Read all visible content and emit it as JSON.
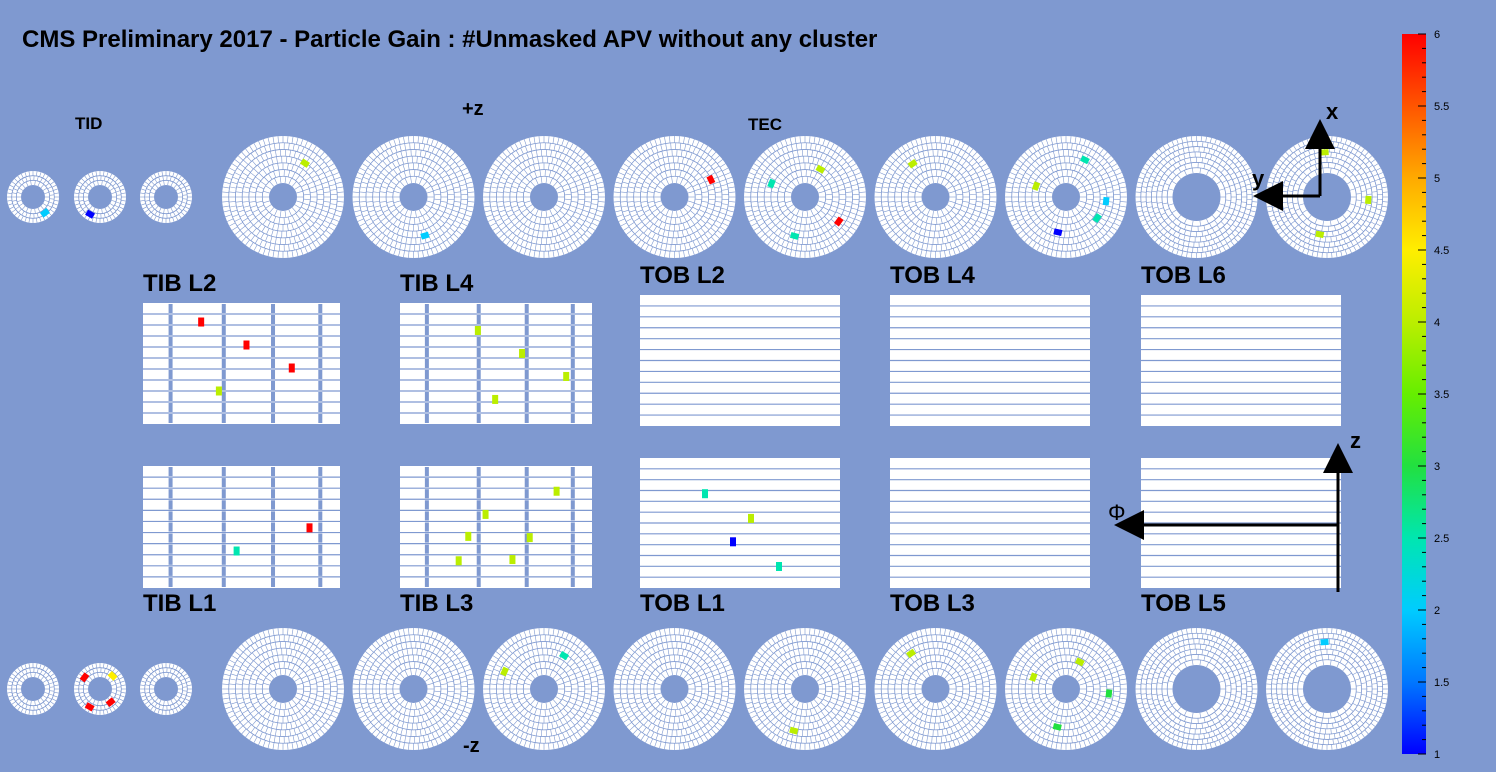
{
  "title": "CMS Preliminary 2017  -  Particle Gain : #Unmasked APV without any cluster",
  "colors": {
    "background": "#7f99d0",
    "module": "#ffffff",
    "axis": "#000000"
  },
  "labels": {
    "tid": "TID",
    "tec": "TEC",
    "plus_z": "+z",
    "minus_z": "-z"
  },
  "axes": {
    "x": "x",
    "y": "y",
    "z": "z",
    "phi": "Φ"
  },
  "chart_data": {
    "type": "heatmap",
    "title": "CMS Preliminary 2017  -  Particle Gain : #Unmasked APV without any cluster",
    "colorbar": {
      "min": 1,
      "max": 6,
      "ticks": [
        "1",
        "1.5",
        "2",
        "2.5",
        "3",
        "3.5",
        "4",
        "4.5",
        "5",
        "5.5",
        "6"
      ],
      "palette": [
        "#0000ff",
        "#0077ff",
        "#00ccff",
        "#00e6b0",
        "#22e040",
        "#66ee00",
        "#bbee00",
        "#ffee00",
        "#ffaa00",
        "#ff5500",
        "#ff0000"
      ]
    },
    "barrel": [
      {
        "name": "TIB L2",
        "row": "upper",
        "value_marks": [
          6,
          6,
          6,
          3.9
        ]
      },
      {
        "name": "TIB L4",
        "row": "upper",
        "value_marks": [
          4,
          4,
          4,
          4
        ]
      },
      {
        "name": "TOB L2",
        "row": "upper",
        "value_marks": []
      },
      {
        "name": "TOB L4",
        "row": "upper",
        "value_marks": []
      },
      {
        "name": "TOB L6",
        "row": "upper",
        "value_marks": []
      },
      {
        "name": "TIB L1",
        "row": "lower",
        "value_marks": [
          6,
          2.3
        ]
      },
      {
        "name": "TIB L3",
        "row": "lower",
        "value_marks": [
          4,
          4,
          4,
          4,
          4,
          4
        ]
      },
      {
        "name": "TOB L1",
        "row": "lower",
        "value_marks": [
          1,
          2.5,
          2.5,
          4
        ]
      },
      {
        "name": "TOB L3",
        "row": "lower",
        "value_marks": []
      },
      {
        "name": "TOB L5",
        "row": "lower",
        "value_marks": []
      }
    ],
    "endcap_plus": {
      "tid_disks": [
        [
          2.2
        ],
        [
          1
        ],
        []
      ],
      "tec_disks": [
        [
          4
        ],
        [
          2
        ],
        [],
        [
          6
        ],
        [
          2.3,
          2.3,
          4,
          6
        ],
        [
          4
        ],
        [
          2,
          1,
          4,
          2.5,
          2.5
        ],
        [],
        [
          4,
          4,
          4
        ]
      ]
    },
    "endcap_minus": {
      "tid_disks": [
        [],
        [
          6,
          6,
          4.3,
          6
        ],
        []
      ],
      "tec_disks": [
        [],
        [],
        [
          4,
          2.5
        ],
        [],
        [
          4
        ],
        [
          4
        ],
        [
          3.2,
          3.2,
          4,
          4
        ],
        [],
        [
          2.2
        ]
      ]
    }
  }
}
